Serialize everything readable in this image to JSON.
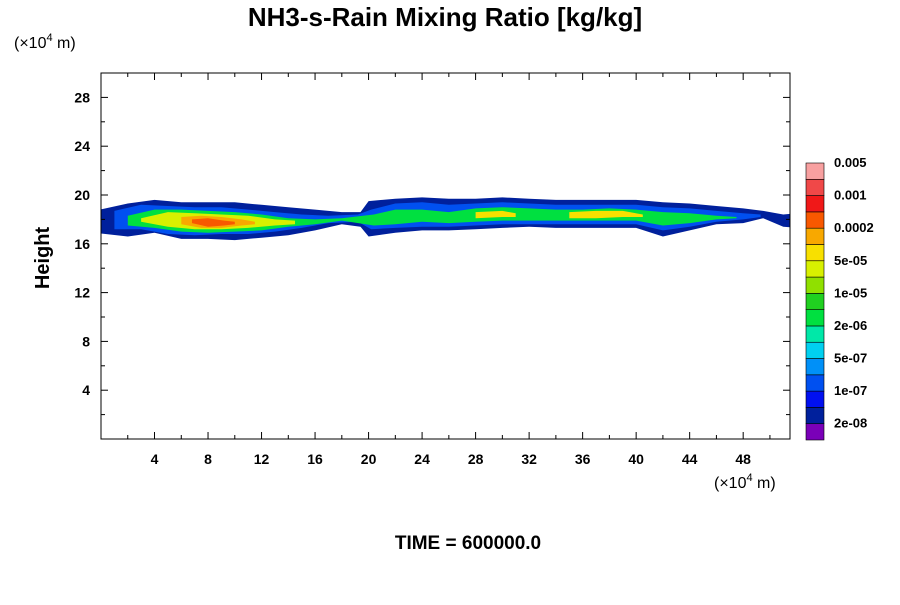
{
  "chart_data": {
    "type": "heatmap",
    "title": "NH3-s-Rain Mixing Ratio [kg/kg]",
    "ylabel": "Height",
    "x_unit": {
      "prefix": "(×10",
      "exp": "4",
      "suffix": " m)"
    },
    "y_unit": {
      "prefix": "(×10",
      "exp": "4",
      "suffix": " m)"
    },
    "xlim": [
      0,
      51.5
    ],
    "ylim": [
      0,
      30
    ],
    "x_ticks": [
      4,
      8,
      12,
      16,
      20,
      24,
      28,
      32,
      36,
      40,
      44,
      48
    ],
    "y_ticks": [
      4,
      8,
      12,
      16,
      20,
      24,
      28
    ],
    "footer": "TIME = 600000.0",
    "colorbar": {
      "colors": [
        "#7a00b8",
        "#00209c",
        "#0010f0",
        "#0050f0",
        "#0090f8",
        "#00d0f0",
        "#00e8a8",
        "#00e040",
        "#20d020",
        "#90e000",
        "#d8f000",
        "#f8e000",
        "#f8a800",
        "#f85800",
        "#f01818",
        "#f04848",
        "#f8a0a0"
      ],
      "labels": [
        "2e-08",
        "1e-07",
        "5e-07",
        "2e-06",
        "1e-05",
        "5e-05",
        "0.0002",
        "0.001",
        "0.005"
      ]
    },
    "layers": [
      {
        "level": 1,
        "band": [
          [
            -0.5,
            16.9,
            18.7
          ],
          [
            2,
            16.6,
            19.3
          ],
          [
            4,
            16.9,
            19.6
          ],
          [
            6,
            16.4,
            19.4
          ],
          [
            8,
            16.4,
            19.4
          ],
          [
            10,
            16.3,
            19.4
          ],
          [
            12,
            16.5,
            19.2
          ],
          [
            14,
            16.7,
            19.0
          ],
          [
            16,
            17.1,
            18.8
          ],
          [
            18,
            17.6,
            18.6
          ],
          [
            19.4,
            17.4,
            18.6
          ],
          [
            20,
            16.6,
            19.5
          ],
          [
            22,
            16.9,
            19.7
          ],
          [
            24,
            17.1,
            19.8
          ],
          [
            26,
            17.1,
            19.7
          ],
          [
            28,
            17.2,
            19.7
          ],
          [
            30,
            17.3,
            19.8
          ],
          [
            32,
            17.4,
            19.7
          ],
          [
            34,
            17.3,
            19.6
          ],
          [
            36,
            17.3,
            19.6
          ],
          [
            38,
            17.3,
            19.6
          ],
          [
            40,
            17.3,
            19.6
          ],
          [
            42,
            16.6,
            19.4
          ],
          [
            44,
            17.1,
            19.3
          ],
          [
            46,
            17.6,
            19.1
          ],
          [
            48,
            17.7,
            18.9
          ],
          [
            49.5,
            18.1,
            18.7
          ],
          [
            51,
            17.4,
            18.4
          ],
          [
            52,
            17.3,
            18.5
          ]
        ]
      },
      {
        "level": 3,
        "band": [
          [
            1,
            17.2,
            18.7
          ],
          [
            3,
            17.2,
            19.2
          ],
          [
            5,
            16.8,
            19.1
          ],
          [
            7,
            16.7,
            19.0
          ],
          [
            9,
            16.8,
            19.0
          ],
          [
            11,
            16.8,
            18.8
          ],
          [
            13,
            17.0,
            18.6
          ],
          [
            15,
            17.3,
            18.4
          ],
          [
            17,
            17.7,
            18.3
          ],
          [
            19.2,
            17.8,
            18.4
          ],
          [
            20.2,
            17.2,
            18.8
          ],
          [
            22,
            17.3,
            19.3
          ],
          [
            24,
            17.4,
            19.4
          ],
          [
            26,
            17.4,
            19.2
          ],
          [
            28,
            17.5,
            19.3
          ],
          [
            30,
            17.6,
            19.4
          ],
          [
            32,
            17.6,
            19.3
          ],
          [
            34,
            17.6,
            19.2
          ],
          [
            36,
            17.6,
            19.2
          ],
          [
            38,
            17.6,
            19.2
          ],
          [
            40,
            17.6,
            19.2
          ],
          [
            42,
            17.1,
            19.0
          ],
          [
            44,
            17.4,
            18.9
          ],
          [
            46,
            17.8,
            18.7
          ],
          [
            48,
            18.0,
            18.5
          ],
          [
            49.3,
            18.2,
            18.4
          ]
        ]
      },
      {
        "level": 7,
        "band": [
          [
            2,
            17.5,
            18.3
          ],
          [
            4,
            17.3,
            18.8
          ],
          [
            6,
            17.0,
            18.8
          ],
          [
            8,
            16.9,
            18.7
          ],
          [
            10,
            17.0,
            18.6
          ],
          [
            12,
            17.1,
            18.4
          ],
          [
            14,
            17.4,
            18.1
          ],
          [
            16,
            17.6,
            18.0
          ],
          [
            18,
            17.9,
            18.1
          ],
          [
            20.4,
            17.5,
            18.4
          ],
          [
            22,
            17.6,
            18.8
          ],
          [
            24,
            17.8,
            18.8
          ],
          [
            26,
            17.7,
            18.6
          ],
          [
            28,
            17.8,
            18.9
          ],
          [
            30,
            17.9,
            19.0
          ],
          [
            32,
            17.9,
            18.9
          ],
          [
            34,
            17.9,
            18.8
          ],
          [
            36,
            17.9,
            18.8
          ],
          [
            38,
            17.9,
            18.9
          ],
          [
            40,
            17.9,
            18.8
          ],
          [
            42,
            17.5,
            18.6
          ],
          [
            44,
            17.7,
            18.5
          ],
          [
            46,
            18.0,
            18.3
          ],
          [
            47.5,
            18.1,
            18.2
          ]
        ]
      },
      {
        "level": 10,
        "band": [
          [
            3,
            17.8,
            18.1
          ],
          [
            5,
            17.4,
            18.6
          ],
          [
            7,
            17.2,
            18.5
          ],
          [
            9,
            17.2,
            18.4
          ],
          [
            11,
            17.3,
            18.3
          ],
          [
            13,
            17.5,
            18.0
          ],
          [
            14.5,
            17.6,
            17.9
          ]
        ]
      },
      {
        "level": 11,
        "band": [
          [
            28,
            18.1,
            18.6
          ],
          [
            30,
            18.2,
            18.7
          ],
          [
            31,
            18.2,
            18.5
          ]
        ]
      },
      {
        "level": 11,
        "band": [
          [
            35,
            18.1,
            18.6
          ],
          [
            37,
            18.1,
            18.7
          ],
          [
            39,
            18.2,
            18.7
          ],
          [
            40.5,
            18.2,
            18.4
          ]
        ]
      },
      {
        "level": 12,
        "band": [
          [
            6,
            17.6,
            18.2
          ],
          [
            7.5,
            17.3,
            18.3
          ],
          [
            9,
            17.3,
            18.2
          ],
          [
            10.5,
            17.5,
            18.0
          ],
          [
            11.5,
            17.6,
            17.8
          ]
        ]
      },
      {
        "level": 13,
        "band": [
          [
            6.8,
            17.7,
            18.0
          ],
          [
            8,
            17.4,
            18.1
          ],
          [
            9.2,
            17.5,
            17.9
          ],
          [
            10,
            17.6,
            17.8
          ]
        ]
      }
    ]
  }
}
